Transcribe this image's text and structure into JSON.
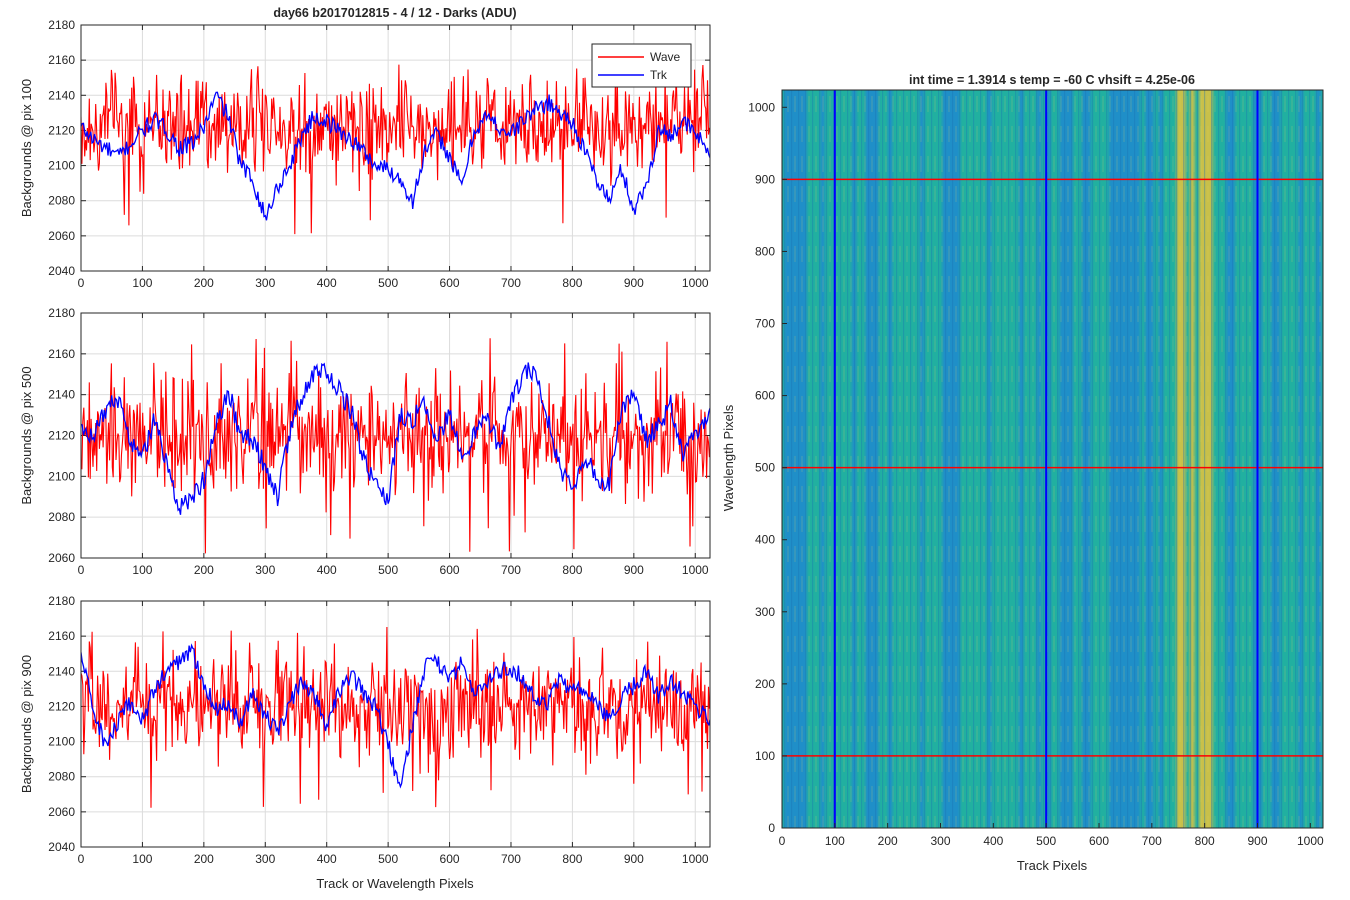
{
  "figure": {
    "title": "day66 b2017012815 - 4 / 12 - Darks (ADU)",
    "shared_xlabel": "Track or Wavelength Pixels"
  },
  "colors": {
    "wave": "#ff0000",
    "trk": "#0000ff",
    "heat_low": "#1f8fc8",
    "heat_mid": "#21b0a0",
    "heat_high": "#c8c04a"
  },
  "chart_data": [
    {
      "type": "line",
      "ylabel": "Backgrounds @ pix 100",
      "xlim": [
        0,
        1024
      ],
      "ylim": [
        2040,
        2180
      ],
      "x_ticks": [
        "0",
        "100",
        "200",
        "300",
        "400",
        "500",
        "600",
        "700",
        "800",
        "900",
        "1000"
      ],
      "y_ticks": [
        "2040",
        "2060",
        "2080",
        "2100",
        "2120",
        "2140",
        "2160",
        "2180"
      ],
      "grid": true,
      "legend": {
        "placement": "top-right",
        "entries": [
          "Wave",
          "Trk"
        ]
      },
      "series": [
        {
          "name": "Wave",
          "color": "#ff0000",
          "mean": 2123,
          "noise_amplitude": 14,
          "min": 2055,
          "max": 2157
        },
        {
          "name": "Trk",
          "color": "#0000ff",
          "x": [
            0,
            20,
            40,
            60,
            80,
            100,
            120,
            140,
            160,
            180,
            200,
            220,
            240,
            260,
            280,
            300,
            320,
            340,
            360,
            380,
            400,
            420,
            440,
            460,
            480,
            500,
            520,
            540,
            560,
            580,
            600,
            620,
            640,
            660,
            680,
            700,
            720,
            740,
            760,
            780,
            800,
            820,
            840,
            860,
            880,
            900,
            920,
            940,
            960,
            980,
            1000,
            1024
          ],
          "values": [
            2122,
            2115,
            2110,
            2105,
            2112,
            2120,
            2126,
            2120,
            2110,
            2112,
            2122,
            2140,
            2128,
            2100,
            2092,
            2070,
            2088,
            2100,
            2118,
            2128,
            2125,
            2120,
            2115,
            2108,
            2100,
            2098,
            2092,
            2080,
            2108,
            2118,
            2105,
            2088,
            2120,
            2128,
            2122,
            2118,
            2126,
            2132,
            2136,
            2130,
            2125,
            2108,
            2092,
            2080,
            2098,
            2075,
            2088,
            2120,
            2118,
            2125,
            2118,
            2108
          ]
        }
      ]
    },
    {
      "type": "line",
      "ylabel": "Backgrounds @ pix 500",
      "xlim": [
        0,
        1024
      ],
      "ylim": [
        2060,
        2180
      ],
      "x_ticks": [
        "0",
        "100",
        "200",
        "300",
        "400",
        "500",
        "600",
        "700",
        "800",
        "900",
        "1000"
      ],
      "y_ticks": [
        "2060",
        "2080",
        "2100",
        "2120",
        "2140",
        "2160",
        "2180"
      ],
      "grid": true,
      "series": [
        {
          "name": "Wave",
          "color": "#ff0000",
          "mean": 2120,
          "noise_amplitude": 14,
          "min": 2062,
          "max": 2168
        },
        {
          "name": "Trk",
          "color": "#0000ff",
          "x": [
            0,
            20,
            40,
            60,
            80,
            100,
            120,
            140,
            160,
            180,
            200,
            220,
            240,
            260,
            280,
            300,
            320,
            340,
            360,
            380,
            400,
            420,
            440,
            460,
            480,
            500,
            520,
            540,
            560,
            580,
            600,
            620,
            640,
            660,
            680,
            700,
            720,
            740,
            760,
            780,
            800,
            820,
            840,
            860,
            880,
            900,
            920,
            940,
            960,
            980,
            1000,
            1024
          ],
          "values": [
            2125,
            2120,
            2132,
            2138,
            2118,
            2110,
            2128,
            2105,
            2085,
            2090,
            2098,
            2125,
            2142,
            2120,
            2118,
            2105,
            2090,
            2122,
            2140,
            2152,
            2150,
            2142,
            2132,
            2108,
            2095,
            2088,
            2130,
            2128,
            2135,
            2118,
            2132,
            2108,
            2120,
            2128,
            2115,
            2135,
            2152,
            2150,
            2128,
            2104,
            2095,
            2108,
            2100,
            2095,
            2135,
            2138,
            2118,
            2124,
            2136,
            2112,
            2122,
            2130
          ]
        }
      ]
    },
    {
      "type": "line",
      "ylabel": "Backgrounds @ pix 900",
      "xlim": [
        0,
        1024
      ],
      "ylim": [
        2040,
        2180
      ],
      "x_ticks": [
        "0",
        "100",
        "200",
        "300",
        "400",
        "500",
        "600",
        "700",
        "800",
        "900",
        "1000"
      ],
      "y_ticks": [
        "2040",
        "2060",
        "2080",
        "2100",
        "2120",
        "2140",
        "2160",
        "2180"
      ],
      "grid": true,
      "series": [
        {
          "name": "Wave",
          "color": "#ff0000",
          "mean": 2120,
          "noise_amplitude": 14,
          "min": 2060,
          "max": 2166
        },
        {
          "name": "Trk",
          "color": "#0000ff",
          "x": [
            0,
            20,
            40,
            60,
            80,
            100,
            120,
            140,
            160,
            180,
            200,
            220,
            240,
            260,
            280,
            300,
            320,
            340,
            360,
            380,
            400,
            420,
            440,
            460,
            480,
            500,
            520,
            540,
            560,
            580,
            600,
            620,
            640,
            660,
            680,
            700,
            720,
            740,
            760,
            780,
            800,
            820,
            840,
            860,
            880,
            900,
            920,
            940,
            960,
            980,
            1000,
            1024
          ],
          "values": [
            2150,
            2118,
            2098,
            2110,
            2122,
            2112,
            2130,
            2140,
            2146,
            2152,
            2134,
            2118,
            2122,
            2112,
            2128,
            2115,
            2105,
            2122,
            2134,
            2128,
            2108,
            2128,
            2138,
            2128,
            2120,
            2098,
            2072,
            2110,
            2142,
            2146,
            2134,
            2145,
            2128,
            2132,
            2140,
            2142,
            2136,
            2125,
            2122,
            2135,
            2130,
            2128,
            2120,
            2112,
            2125,
            2132,
            2140,
            2125,
            2135,
            2128,
            2120,
            2112
          ]
        }
      ]
    },
    {
      "type": "heatmap",
      "title": "int time = 1.3914 s    temp = -60 C    vhsift = 4.25e-06",
      "xlabel": "Track Pixels",
      "ylabel": "Wavelength Pixels",
      "xlim": [
        0,
        1024
      ],
      "ylim": [
        0,
        1024
      ],
      "x_ticks": [
        "0",
        "100",
        "200",
        "300",
        "400",
        "500",
        "600",
        "700",
        "800",
        "900",
        "1000"
      ],
      "y_ticks": [
        "0",
        "100",
        "200",
        "300",
        "400",
        "500",
        "600",
        "700",
        "800",
        "900",
        "1000"
      ],
      "colormap": "parula",
      "value_range": [
        2060,
        2160
      ],
      "bright_band_x": [
        780,
        800
      ],
      "marker_lines_vertical_x": [
        100,
        500,
        900
      ],
      "marker_lines_horizontal_y": [
        100,
        500,
        900
      ],
      "vertical_line_color": "#0000ff",
      "horizontal_line_color": "#ff0000"
    }
  ]
}
